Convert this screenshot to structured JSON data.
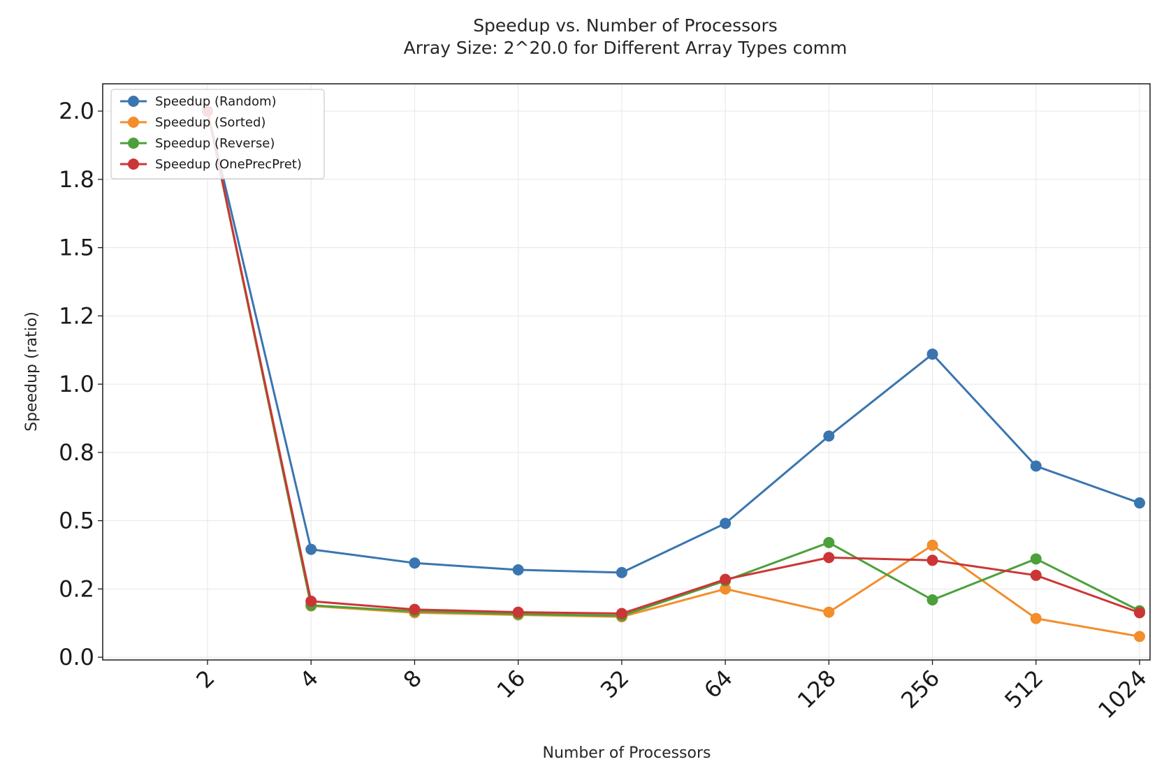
{
  "chart_data": {
    "type": "line",
    "title": "Speedup vs. Number of Processors",
    "subtitle": "Array Size: 2^20.0 for Different Array Types comm",
    "xlabel": "Number of Processors",
    "ylabel": "Speedup (ratio)",
    "categories": [
      "2",
      "4",
      "8",
      "16",
      "32",
      "64",
      "128",
      "256",
      "512",
      "1024"
    ],
    "y_ticks": [
      "0.0",
      "0.2",
      "0.5",
      "0.8",
      "1.0",
      "1.2",
      "1.5",
      "1.8",
      "2.0"
    ],
    "y_tick_values": [
      0.0,
      0.25,
      0.5,
      0.75,
      1.0,
      1.25,
      1.5,
      1.75,
      2.0
    ],
    "ylim": [
      -0.01,
      2.1
    ],
    "grid": true,
    "legend_position": "top-left",
    "series": [
      {
        "name": "Speedup (Random)",
        "color": "#3a75b0",
        "values": [
          2.0,
          0.395,
          0.345,
          0.32,
          0.31,
          0.49,
          0.81,
          1.11,
          0.7,
          0.565
        ]
      },
      {
        "name": "Speedup (Sorted)",
        "color": "#f28e2b",
        "values": [
          2.0,
          0.188,
          0.163,
          0.155,
          0.148,
          0.25,
          0.165,
          0.41,
          0.142,
          0.076
        ]
      },
      {
        "name": "Speedup (Reverse)",
        "color": "#4ca03c",
        "values": [
          2.0,
          0.19,
          0.168,
          0.158,
          0.152,
          0.28,
          0.42,
          0.21,
          0.36,
          0.17
        ]
      },
      {
        "name": "Speedup (OnePrecPret)",
        "color": "#cc3535",
        "values": [
          2.0,
          0.205,
          0.175,
          0.165,
          0.16,
          0.285,
          0.365,
          0.355,
          0.3,
          0.163
        ]
      }
    ]
  }
}
